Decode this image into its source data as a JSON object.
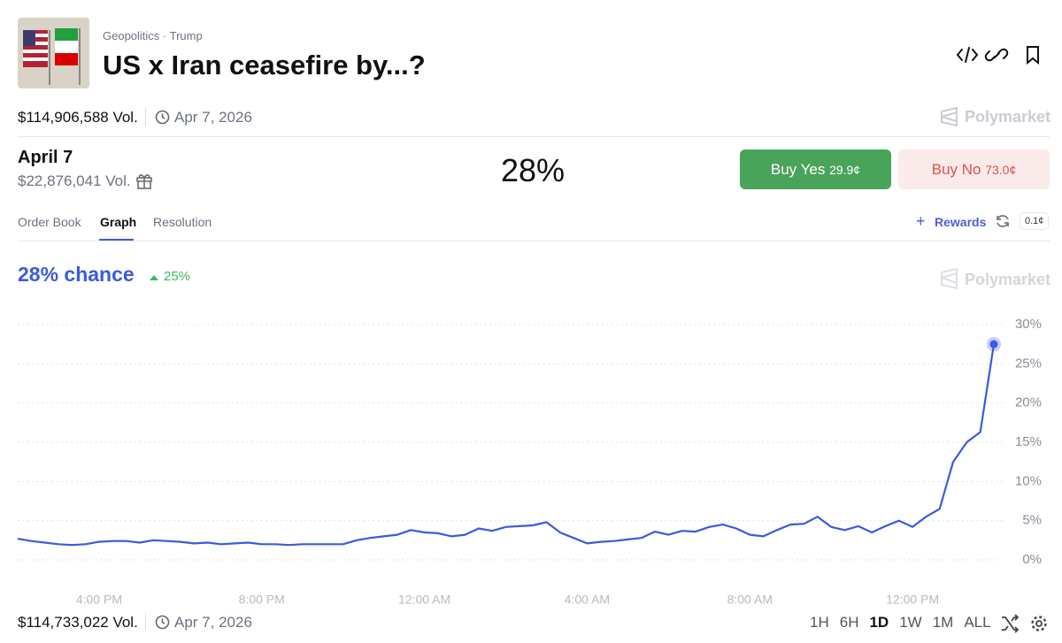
{
  "header": {
    "tags": [
      "Geopolitics",
      "Trump"
    ],
    "title": "US x Iran ceasefire by...?",
    "volume": "$114,906,588 Vol.",
    "date": "Apr 7, 2026",
    "brand": "Polymarket"
  },
  "market": {
    "name": "April 7",
    "volume": "$22,876,041 Vol.",
    "price": "28%",
    "buy_yes": "Buy Yes",
    "yes_price": "29.9¢",
    "buy_no": "Buy No",
    "no_price": "73.0¢"
  },
  "tabs": [
    "Order Book",
    "Graph",
    "Resolution"
  ],
  "rewards": "Rewards",
  "tick_size": "0.1¢",
  "chart_data": {
    "type": "line",
    "title": "28% chance",
    "change": "25%",
    "brand": "Polymarket",
    "categories": [
      null,
      null,
      null,
      null,
      null,
      null,
      "4:00 PM",
      null,
      null,
      null,
      null,
      null,
      null,
      null,
      null,
      null,
      null,
      null,
      "8:00 PM",
      null,
      null,
      null,
      null,
      null,
      null,
      null,
      null,
      null,
      null,
      null,
      "12:00 AM",
      null,
      null,
      null,
      null,
      null,
      null,
      null,
      null,
      null,
      null,
      null,
      "4:00 AM",
      null,
      null,
      null,
      null,
      null,
      null,
      null,
      null,
      null,
      null,
      null,
      "8:00 AM",
      null,
      null,
      null,
      null,
      null,
      null,
      null,
      null,
      null,
      null,
      null,
      "12:00 PM",
      null,
      null,
      null,
      null,
      null,
      null
    ],
    "series": [
      {
        "name": "April 7",
        "color": "#3b5bdb",
        "values": [
          2.7,
          2.4,
          2.2,
          2.0,
          1.9,
          2.0,
          2.3,
          2.4,
          2.4,
          2.2,
          2.5,
          2.4,
          2.3,
          2.1,
          2.2,
          2.0,
          2.1,
          2.2,
          2.0,
          2.0,
          1.9,
          2.0,
          2.0,
          2.0,
          2.0,
          2.5,
          2.8,
          3.0,
          3.2,
          3.8,
          3.5,
          3.4,
          3.0,
          3.2,
          4.0,
          3.7,
          4.2,
          4.3,
          4.4,
          4.8,
          3.5,
          2.8,
          2.1,
          2.3,
          2.4,
          2.6,
          2.8,
          3.6,
          3.2,
          3.7,
          3.6,
          4.2,
          4.5,
          4.0,
          3.2,
          3.0,
          3.8,
          4.5,
          4.6,
          5.5,
          4.2,
          3.8,
          4.3,
          3.5,
          4.3,
          5.0,
          4.2,
          5.5,
          6.5,
          12.5,
          15.0,
          16.3,
          27.5
        ]
      }
    ],
    "ylim": [
      0,
      30
    ],
    "yticks": [
      {
        "value": 0,
        "label": "0%"
      },
      {
        "value": 5,
        "label": "5%"
      },
      {
        "value": 10,
        "label": "10%"
      },
      {
        "value": 15,
        "label": "15%"
      },
      {
        "value": 20,
        "label": "20%"
      },
      {
        "value": 25,
        "label": "25%"
      },
      {
        "value": 30,
        "label": "30%"
      }
    ],
    "grid": true
  },
  "footer": {
    "volume": "$114,733,022 Vol.",
    "date": "Apr 7, 2026",
    "ranges": [
      "1H",
      "6H",
      "1D",
      "1W",
      "1M",
      "ALL"
    ],
    "selected": 2
  }
}
